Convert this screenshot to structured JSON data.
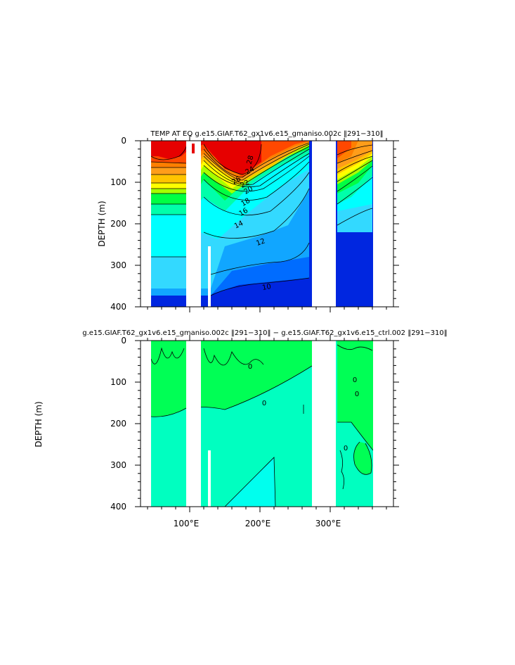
{
  "chart_data": [
    {
      "type": "contour",
      "title": "TEMP AT EQ  g.e15.GIAF.T62_gx1v6.e15_gmaniso.002c  ‖291−310‖",
      "ylabel": "DEPTH (m)",
      "xlabel": "",
      "xlim": [
        30,
        390
      ],
      "ylim": [
        400,
        0
      ],
      "yticks": [
        0,
        100,
        200,
        300,
        400
      ],
      "xticks": [
        100,
        200,
        300
      ],
      "xtick_labels": [
        "100°E",
        "200°E",
        "300°E"
      ],
      "contour_labels": [
        "28",
        "26",
        "24",
        "22",
        "20",
        "18",
        "16",
        "14",
        "12",
        "10"
      ],
      "colors": [
        "#0026e0",
        "#006cff",
        "#11a6ff",
        "#33d9ff",
        "#00ffff",
        "#00ffaa",
        "#00ff44",
        "#a6ff00",
        "#ffff00",
        "#ffc400",
        "#ff9d1a",
        "#ff7f00",
        "#ff4800",
        "#e60000"
      ],
      "land_gaps_lon": [
        [
          97,
          118
        ],
        [
          280,
          314
        ]
      ]
    },
    {
      "type": "contour",
      "title": "g.e15.GIAF.T62_gx1v6.e15_gmaniso.002c  ‖291−310‖  −  g.e15.GIAF.T62_gx1v6.e15_ctrl.002  ‖291−310‖",
      "ylabel": "DEPTH (m)",
      "xlabel": "",
      "xlim": [
        30,
        390
      ],
      "ylim": [
        400,
        0
      ],
      "yticks": [
        0,
        100,
        200,
        300,
        400
      ],
      "xticks": [
        100,
        200,
        300
      ],
      "xtick_labels": [
        "100°E",
        "200°E",
        "300°E"
      ],
      "contour_labels": [
        "0",
        "0",
        "0",
        "0",
        "0"
      ],
      "colors": [
        "#00ff55",
        "#00ffc0",
        "#00ffee"
      ],
      "land_gaps_lon": [
        [
          97,
          118
        ],
        [
          280,
          314
        ]
      ]
    }
  ]
}
